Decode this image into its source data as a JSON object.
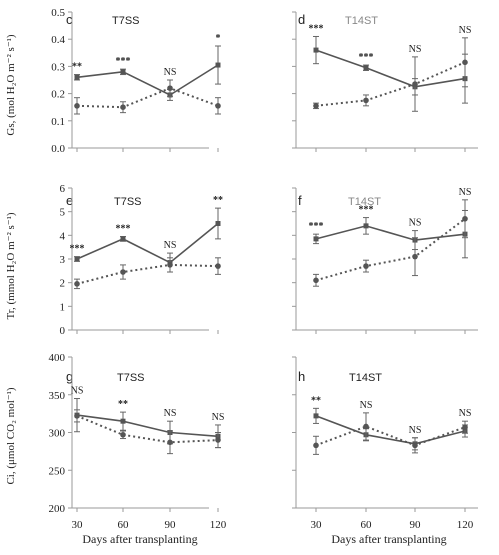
{
  "x_axis_label": "Days after transplanting",
  "x_ticks": [
    30,
    60,
    90,
    120
  ],
  "rows": [
    {
      "ylabel": "Gs, (mol H₂O m⁻² s⁻¹)",
      "y_ticks": [
        "0.0",
        "0.1",
        "0.2",
        "0.3",
        "0.4",
        "0.5"
      ],
      "panels": [
        {
          "letter": "c",
          "title": "T7SS",
          "title_color": "#222222"
        },
        {
          "letter": "d",
          "title": "T14ST",
          "title_color": "#888888"
        }
      ]
    },
    {
      "ylabel": "Tr, (mmol H₂O m⁻² s⁻¹)",
      "y_ticks": [
        "0",
        "1",
        "2",
        "3",
        "4",
        "5",
        "6"
      ],
      "panels": [
        {
          "letter": "e",
          "title": "T7SS",
          "title_color": "#222222"
        },
        {
          "letter": "f",
          "title": "T14ST",
          "title_color": "#888888"
        }
      ]
    },
    {
      "ylabel": "Ci, (μmol CO₂ mol⁻¹)",
      "y_ticks": [
        "200",
        "250",
        "300",
        "350",
        "400"
      ],
      "panels": [
        {
          "letter": "g",
          "title": "T7SS",
          "title_color": "#222222"
        },
        {
          "letter": "h",
          "title": "T14ST",
          "title_color": "#222222"
        }
      ]
    }
  ],
  "chart_data": [
    {
      "type": "line",
      "panel": "c",
      "title": "T7SS",
      "ylabel": "Gs, (mol H₂O m⁻² s⁻¹)",
      "xlabel": "",
      "x": [
        30,
        60,
        90,
        120
      ],
      "ylim": [
        0,
        0.5
      ],
      "grid": false,
      "series": [
        {
          "style": "solid",
          "values": [
            0.26,
            0.28,
            0.195,
            0.305
          ],
          "errors": [
            0.01,
            0.01,
            0.02,
            0.07
          ]
        },
        {
          "style": "dotted",
          "values": [
            0.155,
            0.15,
            0.22,
            0.155
          ],
          "errors": [
            0.03,
            0.02,
            0.03,
            0.03
          ]
        }
      ],
      "significance": [
        "**",
        "***",
        "NS",
        "*"
      ]
    },
    {
      "type": "line",
      "panel": "d",
      "title": "T14ST",
      "ylabel": "",
      "xlabel": "",
      "x": [
        30,
        60,
        90,
        120
      ],
      "ylim": [
        0,
        0.5
      ],
      "grid": false,
      "series": [
        {
          "style": "solid",
          "values": [
            0.36,
            0.295,
            0.225,
            0.255
          ],
          "errors": [
            0.05,
            0.01,
            0.03,
            0.09
          ]
        },
        {
          "style": "dotted",
          "values": [
            0.155,
            0.175,
            0.235,
            0.315
          ],
          "errors": [
            0.01,
            0.02,
            0.1,
            0.09
          ]
        }
      ],
      "significance": [
        "***",
        "***",
        "NS",
        "NS"
      ]
    },
    {
      "type": "line",
      "panel": "e",
      "title": "T7SS",
      "ylabel": "Tr, (mmol H₂O m⁻² s⁻¹)",
      "xlabel": "",
      "x": [
        30,
        60,
        90,
        120
      ],
      "ylim": [
        0,
        6
      ],
      "grid": false,
      "series": [
        {
          "style": "solid",
          "values": [
            3.0,
            3.85,
            2.85,
            4.5
          ],
          "errors": [
            0.1,
            0.1,
            0.4,
            0.65
          ]
        },
        {
          "style": "dotted",
          "values": [
            1.95,
            2.45,
            2.75,
            2.7
          ],
          "errors": [
            0.2,
            0.3,
            0.3,
            0.35
          ]
        }
      ],
      "significance": [
        "***",
        "***",
        "NS",
        "**"
      ]
    },
    {
      "type": "line",
      "panel": "f",
      "title": "T14ST",
      "ylabel": "",
      "xlabel": "",
      "x": [
        30,
        60,
        90,
        120
      ],
      "ylim": [
        0,
        6
      ],
      "grid": false,
      "series": [
        {
          "style": "solid",
          "values": [
            3.85,
            4.4,
            3.8,
            4.05
          ],
          "errors": [
            0.2,
            0.35,
            0.4,
            1.0
          ]
        },
        {
          "style": "dotted",
          "values": [
            2.1,
            2.7,
            3.1,
            4.7
          ],
          "errors": [
            0.25,
            0.25,
            0.8,
            0.8
          ]
        }
      ],
      "significance": [
        "***",
        "***",
        "NS",
        "NS"
      ]
    },
    {
      "type": "line",
      "panel": "g",
      "title": "T7SS",
      "ylabel": "Ci, (μmol CO₂ mol⁻¹)",
      "xlabel": "Days after transplanting",
      "x": [
        30,
        60,
        90,
        120
      ],
      "ylim": [
        200,
        400
      ],
      "grid": false,
      "series": [
        {
          "style": "solid",
          "values": [
            323,
            315,
            300,
            295
          ],
          "errors": [
            22,
            12,
            15,
            15
          ]
        },
        {
          "style": "dotted",
          "values": [
            322,
            297,
            287,
            290
          ],
          "errors": [
            8,
            5,
            15,
            10
          ]
        }
      ],
      "significance": [
        "NS",
        "**",
        "NS",
        "NS"
      ]
    },
    {
      "type": "line",
      "panel": "h",
      "title": "T14ST",
      "ylabel": "",
      "xlabel": "Days after transplanting",
      "x": [
        30,
        60,
        90,
        120
      ],
      "ylim": [
        200,
        400
      ],
      "grid": false,
      "series": [
        {
          "style": "solid",
          "values": [
            322,
            297,
            285,
            302
          ],
          "errors": [
            10,
            8,
            8,
            8
          ]
        },
        {
          "style": "dotted",
          "values": [
            283,
            308,
            283,
            307
          ],
          "errors": [
            12,
            18,
            10,
            8
          ]
        }
      ],
      "significance": [
        "**",
        "NS",
        "NS",
        "NS"
      ]
    }
  ]
}
